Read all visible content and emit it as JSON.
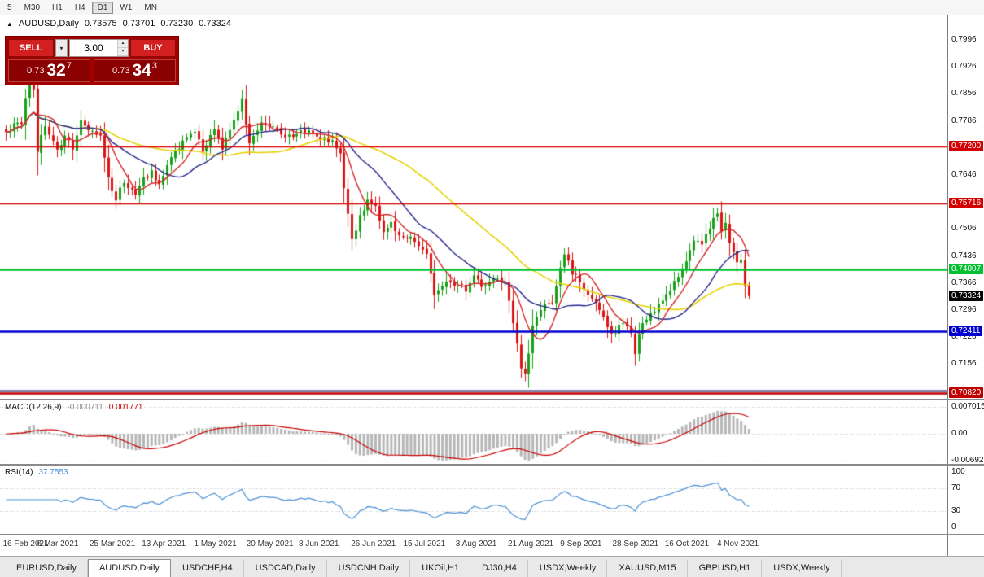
{
  "toolbar": {
    "periods": [
      {
        "label": "5",
        "active": false
      },
      {
        "label": "M30",
        "active": false
      },
      {
        "label": "H1",
        "active": false
      },
      {
        "label": "H4",
        "active": false
      },
      {
        "label": "D1",
        "active": true
      },
      {
        "label": "W1",
        "active": false
      },
      {
        "label": "MN",
        "active": false
      }
    ]
  },
  "chart_header": {
    "arrow": "▲",
    "symbol": "AUDUSD,Daily",
    "open": "0.73575",
    "high": "0.73701",
    "low": "0.73230",
    "close": "0.73324"
  },
  "trade_panel": {
    "sell_label": "SELL",
    "buy_label": "BUY",
    "volume": "3.00",
    "dropdown_icon": "▾",
    "spin_up": "▴",
    "spin_down": "▾",
    "sell_price": {
      "prefix": "0.73",
      "big": "32",
      "sup": "7"
    },
    "buy_price": {
      "prefix": "0.73",
      "big": "34",
      "sup": "3"
    }
  },
  "price_axis": {
    "ticks": [
      0.7996,
      0.7926,
      0.7856,
      0.7786,
      0.7646,
      0.7506,
      0.7436,
      0.7366,
      0.7296,
      0.7226,
      0.7156
    ],
    "tick_labels": [
      "0.7996",
      "0.7926",
      "0.7856",
      "0.7786",
      "0.7646",
      "0.7506",
      "0.7436",
      "0.7366",
      "0.7296",
      "0.7226",
      "0.7156"
    ]
  },
  "levels": [
    {
      "price": 0.772,
      "label": "0.77200",
      "line_color": "#d40000",
      "line_width": 1.5
    },
    {
      "price": 0.75716,
      "label": "0.75716",
      "line_color": "#d40000",
      "line_width": 1.5
    },
    {
      "price": 0.74007,
      "label": "0.74007",
      "line_color": "#00c030",
      "line_width": 2.5
    },
    {
      "price": 0.72411,
      "label": "0.72411",
      "line_color": "#0000d0",
      "line_width": 2.5
    },
    {
      "price": 0.7087,
      "label": "",
      "line_color": "#24246e",
      "line_width": 2
    },
    {
      "price": 0.7082,
      "label": "0.70820",
      "line_color": "#c00000",
      "line_width": 2.5
    }
  ],
  "current_price_badge": {
    "price": 0.73324,
    "label": "0.73324",
    "bg": "#000000"
  },
  "macd_panel": {
    "title": "MACD(12,26,9)",
    "main_value": "-0.000711",
    "signal_value": "0.001771",
    "axis": [
      {
        "v": 0.007015,
        "label": "0.007015"
      },
      {
        "v": 0,
        "label": "0.00"
      },
      {
        "v": -0.006923,
        "label": "-0.006923"
      }
    ]
  },
  "rsi_panel": {
    "title": "RSI(14)",
    "value": "37.7553",
    "axis": [
      {
        "v": 100,
        "label": "100"
      },
      {
        "v": 70,
        "label": "70"
      },
      {
        "v": 30,
        "label": "30"
      },
      {
        "v": 0,
        "label": "0"
      }
    ],
    "dashed_levels": [
      70,
      30
    ]
  },
  "date_axis": [
    "16 Feb 2021",
    "6 Mar 2021",
    "25 Mar 2021",
    "13 Apr 2021",
    "1 May 2021",
    "20 May 2021",
    "8 Jun 2021",
    "26 Jun 2021",
    "15 Jul 2021",
    "3 Aug 2021",
    "21 Aug 2021",
    "9 Sep 2021",
    "28 Sep 2021",
    "16 Oct 2021",
    "4 Nov 2021"
  ],
  "tabs": {
    "items": [
      "EURUSD,Daily",
      "AUDUSD,Daily",
      "USDCHF,H4",
      "USDCAD,Daily",
      "USDCNH,Daily",
      "UKOil,H1",
      "DJ30,H4",
      "USDX,Weekly",
      "XAUUSD,M15",
      "GBPUSD,H1",
      "USDX,Weekly"
    ],
    "active_index": 1
  },
  "colors": {
    "candle_up": "#18a018",
    "candle_down": "#dc1414",
    "ma_fast": "#d42828",
    "ma_medium": "#26268c",
    "ma_slow": "#e6d200",
    "macd_bar": "#b6b6b6",
    "macd_signal": "#c80000",
    "macd_main_value_text": "#8a8a8a",
    "macd_signal_value_text": "#c80000",
    "rsi_line": "#4a8fd4",
    "rsi_value_text": "#4a8fd4"
  },
  "chart_data": {
    "type": "candlestick",
    "symbol": "AUDUSD",
    "timeframe": "Daily",
    "title": "AUDUSD,Daily",
    "y_range": [
      0.7086,
      0.7996
    ],
    "x_range_dates": [
      "16 Feb 2021",
      "9 Nov 2021"
    ],
    "candles_count": 190,
    "last_candle": {
      "open": 0.73575,
      "high": 0.73701,
      "low": 0.7323,
      "close": 0.73324
    },
    "price_path_anchors": [
      [
        0,
        0.7757
      ],
      [
        2,
        0.778
      ],
      [
        4,
        0.7778
      ],
      [
        6,
        0.7897
      ],
      [
        7,
        0.7868
      ],
      [
        8,
        0.7706
      ],
      [
        10,
        0.7772
      ],
      [
        12,
        0.7735
      ],
      [
        13,
        0.7712
      ],
      [
        15,
        0.7748
      ],
      [
        17,
        0.7712
      ],
      [
        19,
        0.7788
      ],
      [
        21,
        0.7762
      ],
      [
        24,
        0.7748
      ],
      [
        26,
        0.764
      ],
      [
        28,
        0.758
      ],
      [
        30,
        0.7625
      ],
      [
        33,
        0.7595
      ],
      [
        35,
        0.764
      ],
      [
        37,
        0.7658
      ],
      [
        39,
        0.7622
      ],
      [
        42,
        0.7692
      ],
      [
        45,
        0.7735
      ],
      [
        48,
        0.7758
      ],
      [
        50,
        0.7706
      ],
      [
        53,
        0.7765
      ],
      [
        55,
        0.7712
      ],
      [
        58,
        0.7788
      ],
      [
        60,
        0.7843
      ],
      [
        62,
        0.7728
      ],
      [
        65,
        0.7782
      ],
      [
        68,
        0.7772
      ],
      [
        71,
        0.7744
      ],
      [
        74,
        0.7752
      ],
      [
        77,
        0.7762
      ],
      [
        80,
        0.7738
      ],
      [
        83,
        0.7736
      ],
      [
        85,
        0.7702
      ],
      [
        86,
        0.7612
      ],
      [
        88,
        0.748
      ],
      [
        90,
        0.7542
      ],
      [
        92,
        0.7582
      ],
      [
        94,
        0.7566
      ],
      [
        96,
        0.7498
      ],
      [
        98,
        0.7524
      ],
      [
        100,
        0.749
      ],
      [
        103,
        0.7486
      ],
      [
        105,
        0.7462
      ],
      [
        107,
        0.7442
      ],
      [
        108,
        0.739
      ],
      [
        109,
        0.7335
      ],
      [
        111,
        0.7358
      ],
      [
        113,
        0.7368
      ],
      [
        115,
        0.7362
      ],
      [
        117,
        0.7344
      ],
      [
        119,
        0.7386
      ],
      [
        121,
        0.7356
      ],
      [
        124,
        0.738
      ],
      [
        127,
        0.7368
      ],
      [
        129,
        0.7262
      ],
      [
        131,
        0.7145
      ],
      [
        132,
        0.7132
      ],
      [
        134,
        0.7256
      ],
      [
        137,
        0.7312
      ],
      [
        139,
        0.7316
      ],
      [
        141,
        0.7405
      ],
      [
        142,
        0.744
      ],
      [
        144,
        0.7388
      ],
      [
        146,
        0.7368
      ],
      [
        149,
        0.7326
      ],
      [
        151,
        0.7296
      ],
      [
        153,
        0.7252
      ],
      [
        155,
        0.7236
      ],
      [
        157,
        0.7262
      ],
      [
        159,
        0.7236
      ],
      [
        160,
        0.7182
      ],
      [
        162,
        0.7262
      ],
      [
        164,
        0.7288
      ],
      [
        166,
        0.7312
      ],
      [
        169,
        0.7346
      ],
      [
        171,
        0.7382
      ],
      [
        173,
        0.7422
      ],
      [
        175,
        0.7476
      ],
      [
        177,
        0.7466
      ],
      [
        179,
        0.7506
      ],
      [
        181,
        0.7546
      ],
      [
        182,
        0.75
      ],
      [
        183,
        0.7522
      ],
      [
        184,
        0.747
      ],
      [
        185,
        0.7446
      ],
      [
        186,
        0.742
      ],
      [
        187,
        0.7426
      ],
      [
        188,
        0.7358
      ],
      [
        189,
        0.73324
      ]
    ],
    "moving_averages": [
      {
        "name": "fast",
        "period": 8,
        "color": "#d42828"
      },
      {
        "name": "medium",
        "period": 20,
        "color": "#26268c"
      },
      {
        "name": "slow",
        "period": 45,
        "color": "#e6d200"
      }
    ],
    "horizontal_levels": [
      0.772,
      0.75716,
      0.74007,
      0.72411,
      0.7082
    ],
    "indicators": {
      "macd": {
        "fast": 12,
        "slow": 26,
        "signal": 9,
        "current_main": -0.000711,
        "current_signal": 0.001771,
        "axis_max": 0.007015,
        "axis_min": -0.006923
      },
      "rsi": {
        "period": 14,
        "current": 37.7553,
        "levels": [
          70,
          30
        ]
      }
    }
  }
}
